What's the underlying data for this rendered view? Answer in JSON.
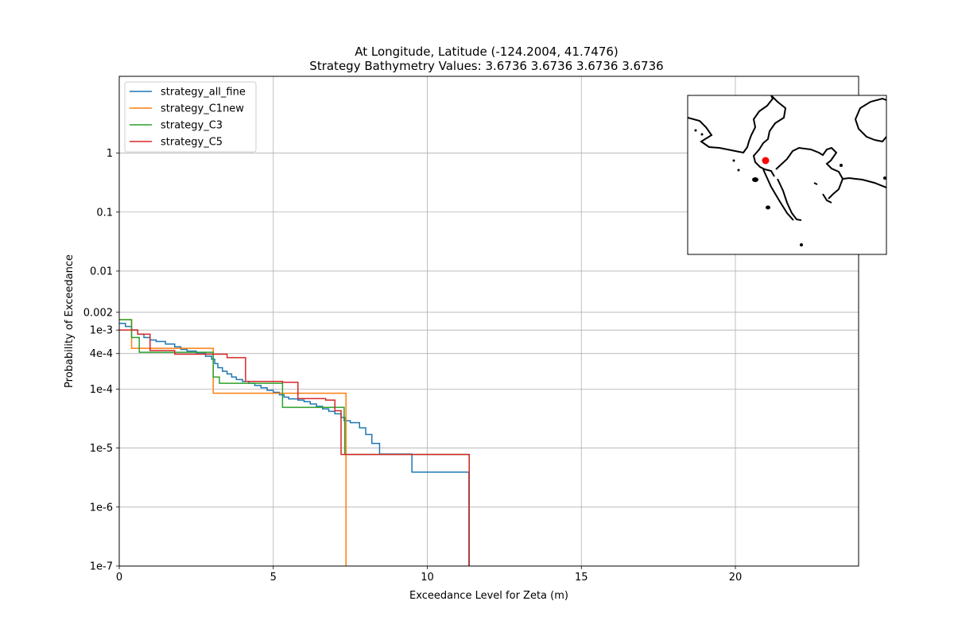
{
  "chart_data": {
    "type": "line",
    "title": "At Longitude, Latitude (-124.2004,  41.7476)",
    "subtitle": "Strategy Bathymetry Values:    3.6736    3.6736    3.6736    3.6736",
    "xlabel": "Exceedance Level for Zeta (m)",
    "ylabel": "Probability of Exceedance",
    "xlim": [
      0,
      24
    ],
    "ylim": [
      1e-07,
      20
    ],
    "yscale": "log",
    "grid": true,
    "legend_position": "upper left",
    "x_ticks": [
      {
        "value": 0,
        "label": "0"
      },
      {
        "value": 5,
        "label": "5"
      },
      {
        "value": 10,
        "label": "10"
      },
      {
        "value": 15,
        "label": "15"
      },
      {
        "value": 20,
        "label": "20"
      }
    ],
    "y_ticks": [
      {
        "value": 1,
        "label": "1"
      },
      {
        "value": 0.1,
        "label": "0.1"
      },
      {
        "value": 0.01,
        "label": "0.01"
      },
      {
        "value": 0.002,
        "label": "0.002"
      },
      {
        "value": 0.001,
        "label": "1e-3"
      },
      {
        "value": 0.0004,
        "label": "4e-4"
      },
      {
        "value": 0.0001,
        "label": "1e-4"
      },
      {
        "value": 1e-05,
        "label": "1e-5"
      },
      {
        "value": 1e-06,
        "label": "1e-6"
      },
      {
        "value": 1e-07,
        "label": "1e-7"
      }
    ],
    "series": [
      {
        "name": "strategy_all_fine",
        "color": "#1f77b4",
        "x": [
          0,
          0.2,
          0.4,
          0.6,
          0.8,
          1.0,
          1.2,
          1.5,
          1.8,
          2.0,
          2.2,
          2.5,
          2.8,
          3.0,
          3.1,
          3.2,
          3.35,
          3.5,
          3.65,
          3.8,
          4.0,
          4.2,
          4.4,
          4.6,
          4.8,
          5.0,
          5.2,
          5.35,
          5.5,
          5.8,
          6.0,
          6.2,
          6.4,
          6.6,
          6.8,
          7.0,
          7.2,
          7.3,
          7.5,
          7.8,
          8.0,
          8.2,
          8.45,
          9.0,
          9.5,
          10.0,
          11.3,
          11.35
        ],
        "y": [
          0.0013,
          0.00115,
          0.001,
          0.00085,
          0.00075,
          0.00068,
          0.00064,
          0.00058,
          0.00052,
          0.00047,
          0.00044,
          0.00041,
          0.00036,
          0.00032,
          0.00027,
          0.00023,
          0.0002,
          0.00018,
          0.00016,
          0.000145,
          0.000135,
          0.000125,
          0.000115,
          0.000105,
          9.5e-05,
          8.8e-05,
          8e-05,
          7.3e-05,
          6.8e-05,
          6.5e-05,
          6.1e-05,
          5.6e-05,
          5.1e-05,
          4.6e-05,
          4.2e-05,
          3.8e-05,
          3.3e-05,
          2.9e-05,
          2.7e-05,
          2.2e-05,
          1.7e-05,
          1.2e-05,
          7.9e-06,
          7.9e-06,
          3.9e-06,
          3.9e-06,
          3.9e-06,
          1e-07
        ]
      },
      {
        "name": "strategy_C1new",
        "color": "#ff7f0e",
        "x": [
          0,
          0.4,
          3.05,
          7.35,
          7.36
        ],
        "y": [
          0.0015,
          0.00049,
          8.5e-05,
          8.5e-05,
          1e-07
        ]
      },
      {
        "name": "strategy_C3",
        "color": "#2ca02c",
        "x": [
          0,
          0.4,
          0.65,
          3.05,
          3.25,
          5.3,
          7.3,
          7.32,
          11.35,
          11.36
        ],
        "y": [
          0.0015,
          0.00075,
          0.00042,
          0.00016,
          0.000125,
          4.9e-05,
          3.3e-05,
          7.8e-06,
          7.8e-06,
          1e-07
        ]
      },
      {
        "name": "strategy_C5",
        "color": "#d62728",
        "x": [
          0,
          0.6,
          1.0,
          1.8,
          3.1,
          3.5,
          4.1,
          5.3,
          5.8,
          6.7,
          7.0,
          7.2,
          11.35,
          11.36
        ],
        "y": [
          0.001,
          0.00085,
          0.00045,
          0.00039,
          0.00039,
          0.00034,
          0.000135,
          0.00013,
          6.9e-05,
          6.5e-05,
          4.3e-05,
          7.8e-06,
          7.8e-06,
          1e-07
        ]
      }
    ]
  },
  "inset_map": {
    "marker_color": "#ff0000"
  }
}
